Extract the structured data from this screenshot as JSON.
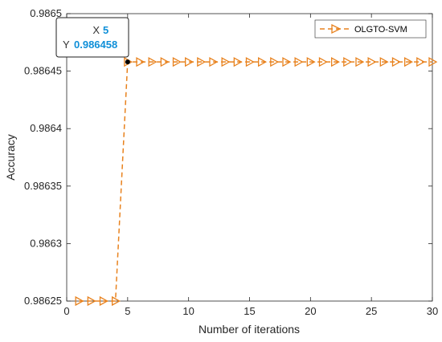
{
  "chart_data": {
    "type": "line",
    "title": "",
    "xlabel": "Number of iterations",
    "ylabel": "Accuracy",
    "xlim": [
      0,
      30
    ],
    "ylim": [
      0.98625,
      0.9865
    ],
    "x_ticks": [
      "0",
      "5",
      "10",
      "15",
      "20",
      "25",
      "30"
    ],
    "y_ticks": [
      "0.98625",
      "0.9863",
      "0.98635",
      "0.9864",
      "0.98645",
      "0.9865"
    ],
    "grid": false,
    "legend_position": "top-right",
    "series": [
      {
        "name": "OLGTO-SVM",
        "color": "#e8821e",
        "line_style": "dashed",
        "marker": "triangle-right",
        "x": [
          1,
          2,
          3,
          4,
          5,
          6,
          7,
          8,
          9,
          10,
          11,
          12,
          13,
          14,
          15,
          16,
          17,
          18,
          19,
          20,
          21,
          22,
          23,
          24,
          25,
          26,
          27,
          28,
          29,
          30
        ],
        "y": [
          0.98625,
          0.98625,
          0.98625,
          0.98625,
          0.986458,
          0.986458,
          0.986458,
          0.986458,
          0.986458,
          0.986458,
          0.986458,
          0.986458,
          0.986458,
          0.986458,
          0.986458,
          0.986458,
          0.986458,
          0.986458,
          0.986458,
          0.986458,
          0.986458,
          0.986458,
          0.986458,
          0.986458,
          0.986458,
          0.986458,
          0.986458,
          0.986458,
          0.986458,
          0.986458
        ]
      }
    ],
    "datatip": {
      "x_label": "X",
      "x_value": "5",
      "y_label": "Y",
      "y_value": "0.986458",
      "x": 5,
      "y": 0.986458
    }
  }
}
